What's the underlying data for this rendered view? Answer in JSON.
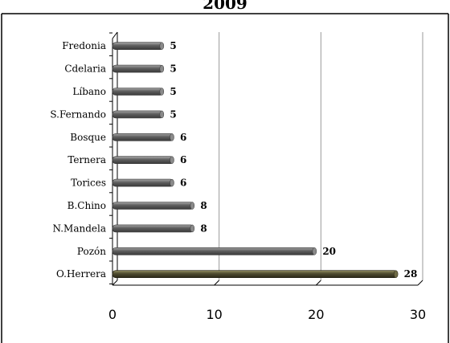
{
  "chart_data": {
    "type": "bar",
    "orientation": "horizontal",
    "title": "2009",
    "categories": [
      "Fredonia",
      "Cdelaria",
      "Líbano",
      "S.Fernando",
      "Bosque",
      "Ternera",
      "Torices",
      "B.Chino",
      "N.Mandela",
      "Pozón",
      "O.Herrera"
    ],
    "values": [
      5,
      5,
      5,
      5,
      6,
      6,
      6,
      8,
      8,
      20,
      28
    ],
    "xlim": [
      0,
      30
    ],
    "xticks": [
      0,
      10,
      20,
      30
    ],
    "xlabel": "",
    "ylabel": "",
    "grid": true,
    "legend": "none",
    "colors": {
      "bar": "#6b6b6b",
      "bar_highlight": "#4d4a2f",
      "grid": "#999999",
      "frame": "#000000"
    },
    "highlight_category": "O.Herrera"
  }
}
